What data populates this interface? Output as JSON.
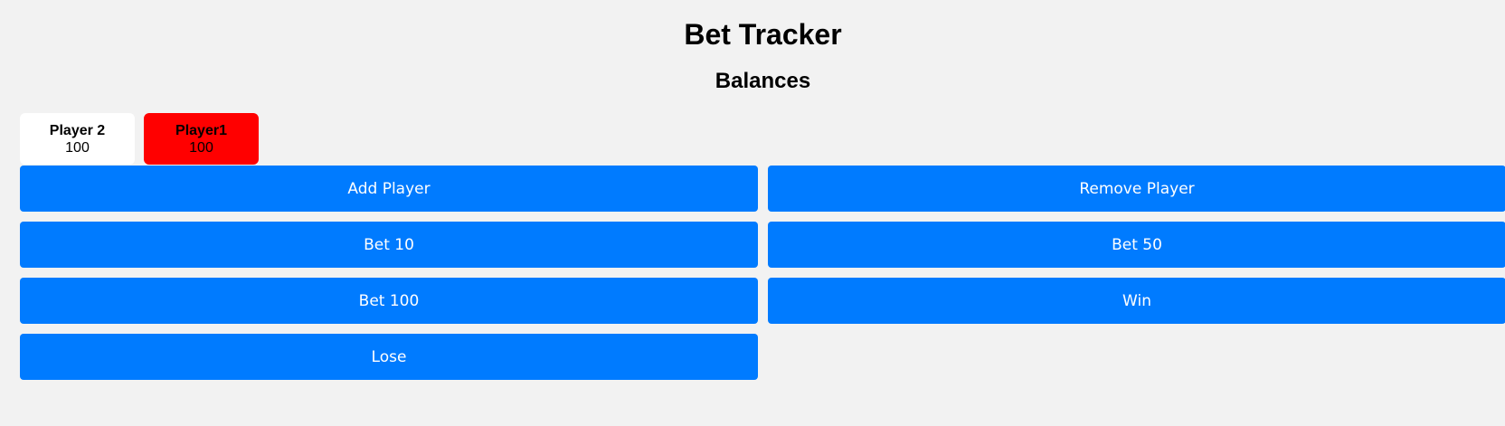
{
  "header": {
    "title": "Bet Tracker",
    "subtitle": "Balances"
  },
  "colors": {
    "background": "#f2f2f2",
    "button": "#007bff",
    "selected_player": "#ff0000",
    "player_card": "#ffffff"
  },
  "players": [
    {
      "name": "Player 2",
      "balance": "100",
      "selected": false
    },
    {
      "name": "Player1",
      "balance": "100",
      "selected": true
    }
  ],
  "buttons": {
    "add_player": "Add Player",
    "remove_player": "Remove Player",
    "bet_10": "Bet 10",
    "bet_50": "Bet 50",
    "bet_100": "Bet 100",
    "win": "Win",
    "lose": "Lose"
  }
}
